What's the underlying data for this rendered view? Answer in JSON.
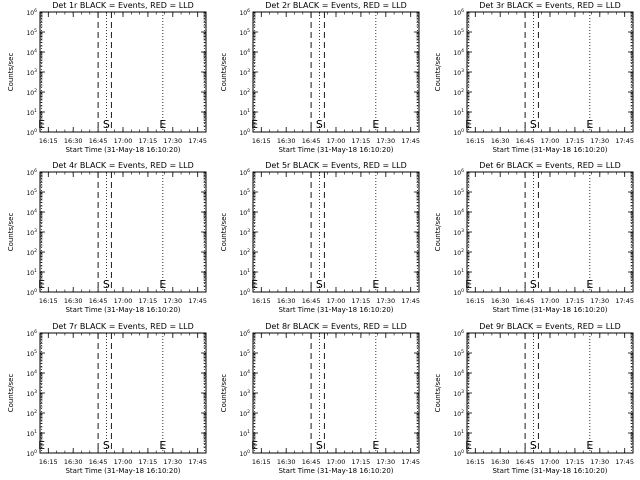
{
  "chart_data": [
    {
      "type": "line",
      "title": "Det 1r BLACK = Events, RED = LLD",
      "ylabel": "Counts/sec",
      "xlabel": "Start Time (31-May-18 16:10:20)",
      "xticks": [
        "16:15",
        "16:30",
        "16:45",
        "17:00",
        "17:15",
        "17:30",
        "17:45"
      ],
      "yticks": [
        "10",
        "10",
        "10",
        "10",
        "10",
        "10",
        "10"
      ],
      "yexp": [
        "0",
        "1",
        "2",
        "3",
        "4",
        "5",
        "6"
      ],
      "scale_y": "log",
      "ylim": [
        1,
        1000000
      ],
      "markers": [
        {
          "label": "E",
          "time": "16:11"
        },
        {
          "label": "S",
          "time": "16:50"
        },
        {
          "label": "E",
          "time": "17:24"
        }
      ],
      "series": []
    },
    {
      "type": "line",
      "title": "Det 2r BLACK = Events, RED = LLD",
      "ylabel": "Counts/sec",
      "xlabel": "Start Time (31-May-18 16:10:20)",
      "xticks": [
        "16:15",
        "16:30",
        "16:45",
        "17:00",
        "17:15",
        "17:30",
        "17:45"
      ],
      "yticks": [
        "10",
        "10",
        "10",
        "10",
        "10",
        "10",
        "10"
      ],
      "yexp": [
        "0",
        "1",
        "2",
        "3",
        "4",
        "5",
        "6"
      ],
      "scale_y": "log",
      "ylim": [
        1,
        1000000
      ],
      "markers": [
        {
          "label": "E",
          "time": "16:11"
        },
        {
          "label": "S",
          "time": "16:50"
        },
        {
          "label": "E",
          "time": "17:24"
        }
      ],
      "series": []
    },
    {
      "type": "line",
      "title": "Det 3r BLACK = Events, RED = LLD",
      "ylabel": "Counts/sec",
      "xlabel": "Start Time (31-May-18 16:10:20)",
      "xticks": [
        "16:15",
        "16:30",
        "16:45",
        "17:00",
        "17:15",
        "17:30",
        "17:45"
      ],
      "yticks": [
        "10",
        "10",
        "10",
        "10",
        "10",
        "10",
        "10"
      ],
      "yexp": [
        "0",
        "1",
        "2",
        "3",
        "4",
        "5",
        "6"
      ],
      "scale_y": "log",
      "ylim": [
        1,
        1000000
      ],
      "markers": [
        {
          "label": "E",
          "time": "16:11"
        },
        {
          "label": "S",
          "time": "16:50"
        },
        {
          "label": "E",
          "time": "17:24"
        }
      ],
      "series": []
    },
    {
      "type": "line",
      "title": "Det 4r BLACK = Events, RED = LLD",
      "ylabel": "Counts/sec",
      "xlabel": "Start Time (31-May-18 16:10:20)",
      "xticks": [
        "16:15",
        "16:30",
        "16:45",
        "17:00",
        "17:15",
        "17:30",
        "17:45"
      ],
      "yticks": [
        "10",
        "10",
        "10",
        "10",
        "10",
        "10",
        "10"
      ],
      "yexp": [
        "0",
        "1",
        "2",
        "3",
        "4",
        "5",
        "6"
      ],
      "scale_y": "log",
      "ylim": [
        1,
        1000000
      ],
      "markers": [
        {
          "label": "E",
          "time": "16:11"
        },
        {
          "label": "S",
          "time": "16:50"
        },
        {
          "label": "E",
          "time": "17:24"
        }
      ],
      "series": []
    },
    {
      "type": "line",
      "title": "Det 5r BLACK = Events, RED = LLD",
      "ylabel": "Counts/sec",
      "xlabel": "Start Time (31-May-18 16:10:20)",
      "xticks": [
        "16:15",
        "16:30",
        "16:45",
        "17:00",
        "17:15",
        "17:30",
        "17:45"
      ],
      "yticks": [
        "10",
        "10",
        "10",
        "10",
        "10",
        "10",
        "10"
      ],
      "yexp": [
        "0",
        "1",
        "2",
        "3",
        "4",
        "5",
        "6"
      ],
      "scale_y": "log",
      "ylim": [
        1,
        1000000
      ],
      "markers": [
        {
          "label": "E",
          "time": "16:11"
        },
        {
          "label": "S",
          "time": "16:50"
        },
        {
          "label": "E",
          "time": "17:24"
        }
      ],
      "series": []
    },
    {
      "type": "line",
      "title": "Det 6r BLACK = Events, RED = LLD",
      "ylabel": "Counts/sec",
      "xlabel": "Start Time (31-May-18 16:10:20)",
      "xticks": [
        "16:15",
        "16:30",
        "16:45",
        "17:00",
        "17:15",
        "17:30",
        "17:45"
      ],
      "yticks": [
        "10",
        "10",
        "10",
        "10",
        "10",
        "10",
        "10"
      ],
      "yexp": [
        "0",
        "1",
        "2",
        "3",
        "4",
        "5",
        "6"
      ],
      "scale_y": "log",
      "ylim": [
        1,
        1000000
      ],
      "markers": [
        {
          "label": "E",
          "time": "16:11"
        },
        {
          "label": "S",
          "time": "16:50"
        },
        {
          "label": "E",
          "time": "17:24"
        }
      ],
      "series": []
    },
    {
      "type": "line",
      "title": "Det 7r BLACK = Events, RED = LLD",
      "ylabel": "Counts/sec",
      "xlabel": "Start Time (31-May-18 16:10:20)",
      "xticks": [
        "16:15",
        "16:30",
        "16:45",
        "17:00",
        "17:15",
        "17:30",
        "17:45"
      ],
      "yticks": [
        "10",
        "10",
        "10",
        "10",
        "10",
        "10",
        "10"
      ],
      "yexp": [
        "0",
        "1",
        "2",
        "3",
        "4",
        "5",
        "6"
      ],
      "scale_y": "log",
      "ylim": [
        1,
        1000000
      ],
      "markers": [
        {
          "label": "E",
          "time": "16:11"
        },
        {
          "label": "S",
          "time": "16:50"
        },
        {
          "label": "E",
          "time": "17:24"
        }
      ],
      "series": []
    },
    {
      "type": "line",
      "title": "Det 8r BLACK = Events, RED = LLD",
      "ylabel": "Counts/sec",
      "xlabel": "Start Time (31-May-18 16:10:20)",
      "xticks": [
        "16:15",
        "16:30",
        "16:45",
        "17:00",
        "17:15",
        "17:30",
        "17:45"
      ],
      "yticks": [
        "10",
        "10",
        "10",
        "10",
        "10",
        "10",
        "10"
      ],
      "yexp": [
        "0",
        "1",
        "2",
        "3",
        "4",
        "5",
        "6"
      ],
      "scale_y": "log",
      "ylim": [
        1,
        1000000
      ],
      "markers": [
        {
          "label": "E",
          "time": "16:11"
        },
        {
          "label": "S",
          "time": "16:50"
        },
        {
          "label": "E",
          "time": "17:24"
        }
      ],
      "series": []
    },
    {
      "type": "line",
      "title": "Det 9r BLACK = Events, RED = LLD",
      "ylabel": "Counts/sec",
      "xlabel": "Start Time (31-May-18 16:10:20)",
      "xticks": [
        "16:15",
        "16:30",
        "16:45",
        "17:00",
        "17:15",
        "17:30",
        "17:45"
      ],
      "yticks": [
        "10",
        "10",
        "10",
        "10",
        "10",
        "10",
        "10"
      ],
      "yexp": [
        "0",
        "1",
        "2",
        "3",
        "4",
        "5",
        "6"
      ],
      "scale_y": "log",
      "ylim": [
        1,
        1000000
      ],
      "markers": [
        {
          "label": "E",
          "time": "16:11"
        },
        {
          "label": "S",
          "time": "16:50"
        },
        {
          "label": "E",
          "time": "17:24"
        }
      ],
      "series": []
    }
  ],
  "time_axis": {
    "start": "16:10",
    "end": "17:50",
    "dotted_lines": [
      "16:11",
      "16:50",
      "17:24",
      "17:49"
    ],
    "dashed_lines": [
      "16:45",
      "16:53"
    ]
  }
}
